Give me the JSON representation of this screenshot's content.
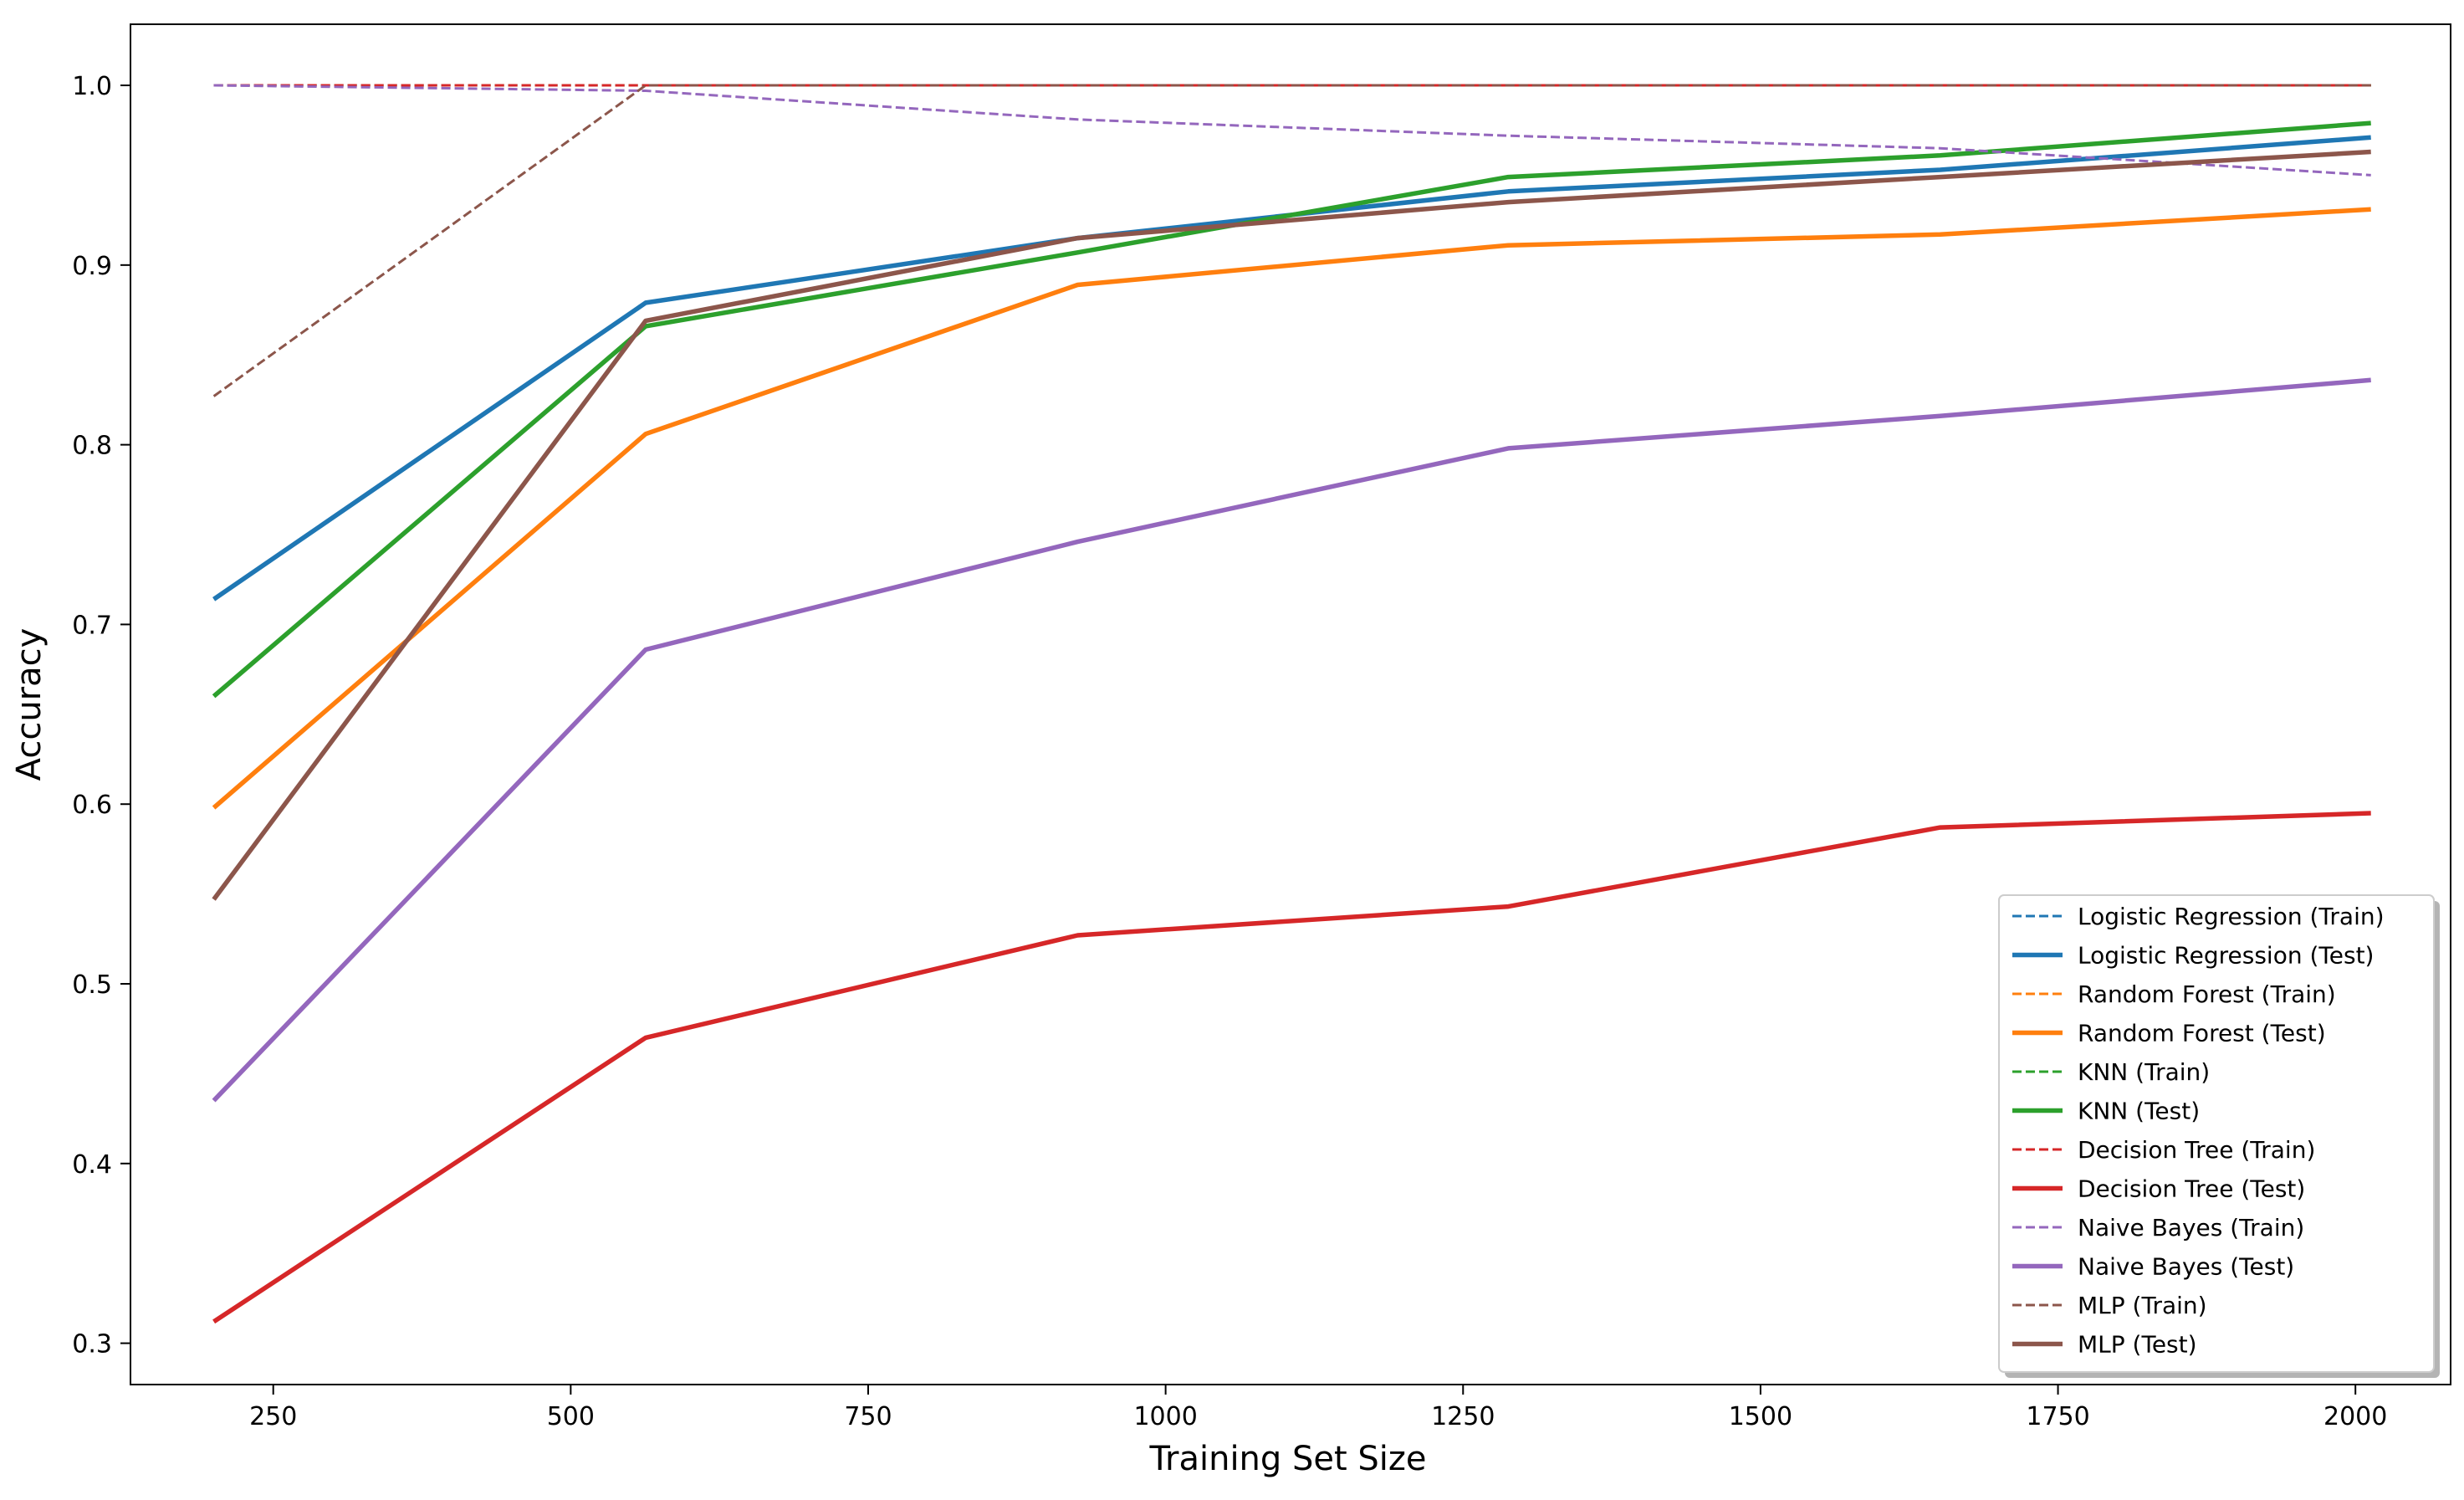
{
  "chart_data": {
    "type": "line",
    "title": "",
    "xlabel": "Training Set Size",
    "ylabel": "Accuracy",
    "xlim": [
      130,
      2080
    ],
    "ylim": [
      0.277,
      1.034
    ],
    "x_ticks": [
      250,
      500,
      750,
      1000,
      1250,
      1500,
      1750,
      2000
    ],
    "y_ticks": [
      0.3,
      0.4,
      0.5,
      0.6,
      0.7,
      0.8,
      0.9,
      1.0
    ],
    "y_tick_labels": [
      "0.3",
      "0.4",
      "0.5",
      "0.6",
      "0.7",
      "0.8",
      "0.9",
      "1.0"
    ],
    "grid": false,
    "legend_position": "lower-right",
    "x": [
      200,
      563,
      926,
      1288,
      1651,
      2013
    ],
    "series": [
      {
        "name": "Logistic Regression (Train)",
        "color": "#1f77b4",
        "style": "dashed",
        "values": [
          1.0,
          1.0,
          1.0,
          1.0,
          1.0,
          1.0
        ]
      },
      {
        "name": "Logistic Regression (Test)",
        "color": "#1f77b4",
        "style": "solid",
        "values": [
          0.714,
          0.879,
          0.915,
          0.941,
          0.953,
          0.971
        ]
      },
      {
        "name": "Random Forest (Train)",
        "color": "#ff7f0e",
        "style": "dashed",
        "values": [
          1.0,
          1.0,
          1.0,
          1.0,
          1.0,
          1.0
        ]
      },
      {
        "name": "Random Forest (Test)",
        "color": "#ff7f0e",
        "style": "solid",
        "values": [
          0.598,
          0.806,
          0.889,
          0.911,
          0.917,
          0.931
        ]
      },
      {
        "name": "KNN (Train)",
        "color": "#2ca02c",
        "style": "dashed",
        "values": [
          1.0,
          1.0,
          1.0,
          1.0,
          1.0,
          1.0
        ]
      },
      {
        "name": "KNN (Test)",
        "color": "#2ca02c",
        "style": "solid",
        "values": [
          0.66,
          0.866,
          0.907,
          0.949,
          0.961,
          0.979
        ]
      },
      {
        "name": "Decision Tree (Train)",
        "color": "#d62728",
        "style": "dashed",
        "values": [
          1.0,
          1.0,
          1.0,
          1.0,
          1.0,
          1.0
        ]
      },
      {
        "name": "Decision Tree (Test)",
        "color": "#d62728",
        "style": "solid",
        "values": [
          0.312,
          0.47,
          0.527,
          0.543,
          0.587,
          0.595
        ]
      },
      {
        "name": "Naive Bayes (Train)",
        "color": "#9467bd",
        "style": "dashed",
        "values": [
          1.0,
          0.997,
          0.981,
          0.972,
          0.965,
          0.95
        ]
      },
      {
        "name": "Naive Bayes (Test)",
        "color": "#9467bd",
        "style": "solid",
        "values": [
          0.435,
          0.686,
          0.746,
          0.798,
          0.816,
          0.836
        ]
      },
      {
        "name": "MLP (Train)",
        "color": "#8c564b",
        "style": "dashed",
        "values": [
          0.827,
          1.0,
          1.0,
          1.0,
          1.0,
          1.0
        ]
      },
      {
        "name": "MLP (Test)",
        "color": "#8c564b",
        "style": "solid",
        "values": [
          0.547,
          0.869,
          0.915,
          0.935,
          0.949,
          0.963
        ]
      }
    ]
  }
}
